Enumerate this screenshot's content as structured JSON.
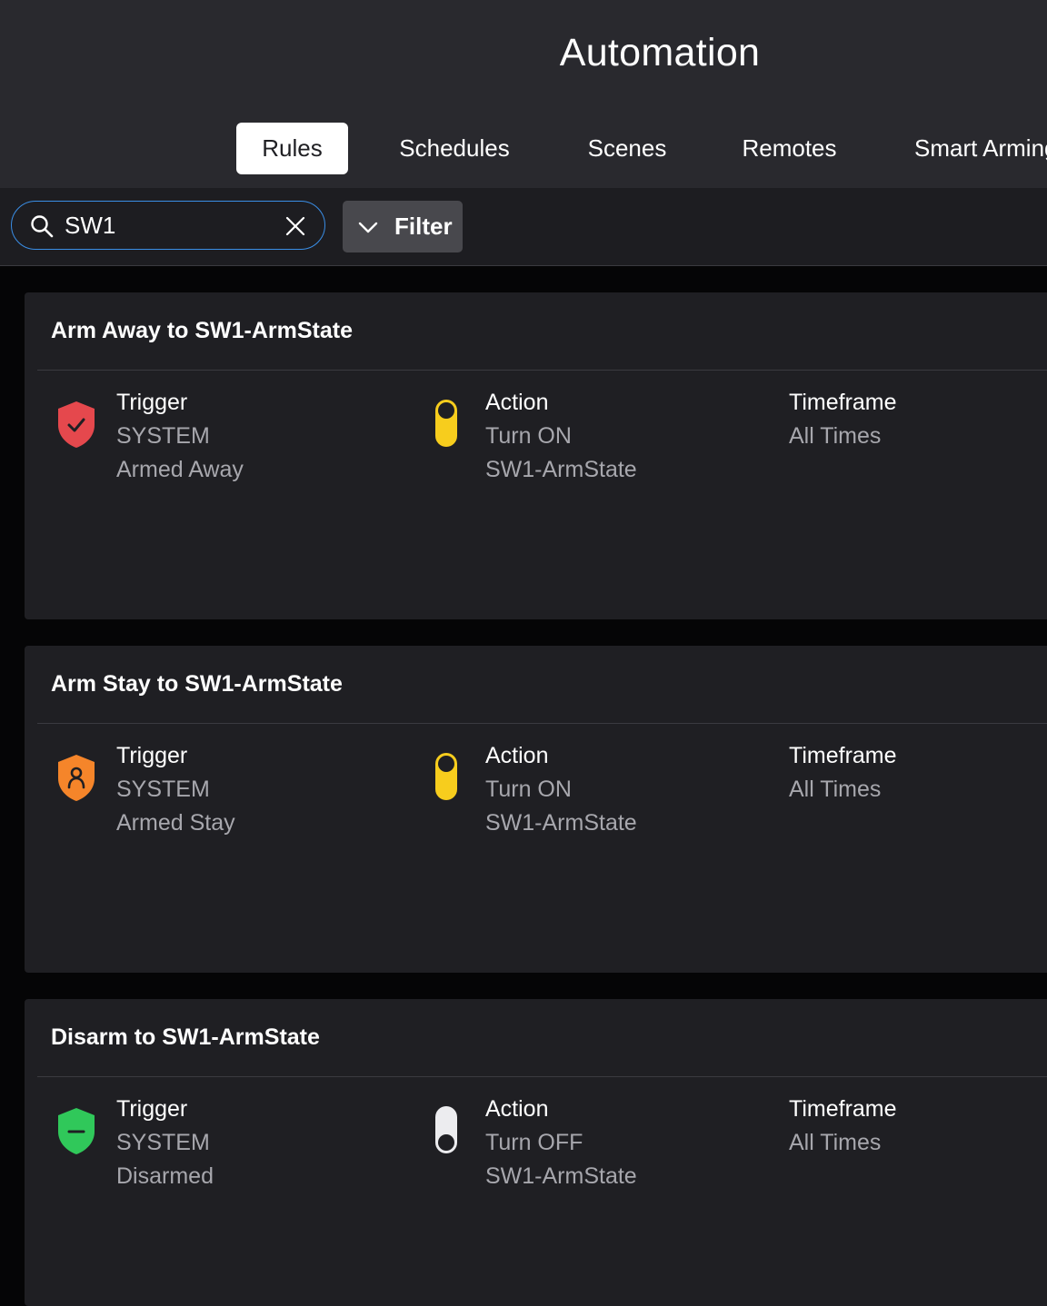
{
  "header": {
    "title": "Automation",
    "tabs": [
      {
        "label": "Rules",
        "active": true
      },
      {
        "label": "Schedules",
        "active": false
      },
      {
        "label": "Scenes",
        "active": false
      },
      {
        "label": "Remotes",
        "active": false
      },
      {
        "label": "Smart Arming",
        "active": false
      }
    ]
  },
  "toolbar": {
    "search_value": "SW1",
    "filter_label": "Filter"
  },
  "colors": {
    "accent_blue": "#3a8ee6",
    "shield_red": "#e5484d",
    "shield_orange": "#f5852a",
    "shield_green": "#30c85a",
    "toggle_on": "#f7cd1d",
    "toggle_off": "#ececef"
  },
  "rules": [
    {
      "title": "Arm Away to SW1-ArmState",
      "trigger": {
        "heading": "Trigger",
        "source": "SYSTEM",
        "event": "Armed Away",
        "icon": "shield-check-icon"
      },
      "action": {
        "heading": "Action",
        "command": "Turn ON",
        "target": "SW1-ArmState",
        "icon": "toggle-on-icon"
      },
      "timeframe": {
        "heading": "Timeframe",
        "value": "All Times"
      }
    },
    {
      "title": "Arm Stay to SW1-ArmState",
      "trigger": {
        "heading": "Trigger",
        "source": "SYSTEM",
        "event": "Armed Stay",
        "icon": "shield-person-icon"
      },
      "action": {
        "heading": "Action",
        "command": "Turn ON",
        "target": "SW1-ArmState",
        "icon": "toggle-on-icon"
      },
      "timeframe": {
        "heading": "Timeframe",
        "value": "All Times"
      }
    },
    {
      "title": "Disarm to SW1-ArmState",
      "trigger": {
        "heading": "Trigger",
        "source": "SYSTEM",
        "event": "Disarmed",
        "icon": "shield-minus-icon"
      },
      "action": {
        "heading": "Action",
        "command": "Turn OFF",
        "target": "SW1-ArmState",
        "icon": "toggle-off-icon"
      },
      "timeframe": {
        "heading": "Timeframe",
        "value": "All Times"
      }
    }
  ]
}
